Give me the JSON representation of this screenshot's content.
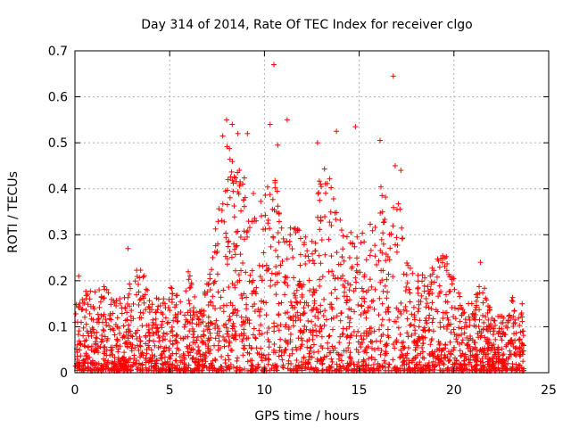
{
  "chart_data": {
    "type": "scatter",
    "title": "Day 314 of 2014, Rate Of TEC Index for receiver clgo",
    "xlabel": "GPS time / hours",
    "ylabel": "ROTI / TECUs",
    "xlim": [
      0,
      25
    ],
    "ylim": [
      0,
      0.7
    ],
    "xticks": [
      0,
      5,
      10,
      15,
      20,
      25
    ],
    "xtick_labels": [
      "0",
      "5",
      "10",
      "15",
      "20",
      "25"
    ],
    "yticks": [
      0,
      0.1,
      0.2,
      0.3,
      0.4,
      0.5,
      0.6,
      0.7
    ],
    "ytick_labels": [
      "0",
      "0.1",
      "0.2",
      "0.3",
      "0.4",
      "0.5",
      "0.6",
      "0.7"
    ],
    "grid": true,
    "marker": "+",
    "series": [
      {
        "name": "ROTI",
        "color": "#ff0000",
        "x_range": [
          0,
          23.7
        ],
        "envelope": [
          {
            "x": 0.0,
            "y": 0.14
          },
          {
            "x": 0.5,
            "y": 0.18
          },
          {
            "x": 1.0,
            "y": 0.17
          },
          {
            "x": 1.5,
            "y": 0.19
          },
          {
            "x": 2.0,
            "y": 0.17
          },
          {
            "x": 2.5,
            "y": 0.18
          },
          {
            "x": 3.0,
            "y": 0.2
          },
          {
            "x": 3.5,
            "y": 0.24
          },
          {
            "x": 4.0,
            "y": 0.15
          },
          {
            "x": 4.5,
            "y": 0.17
          },
          {
            "x": 5.0,
            "y": 0.19
          },
          {
            "x": 5.5,
            "y": 0.16
          },
          {
            "x": 6.0,
            "y": 0.24
          },
          {
            "x": 6.5,
            "y": 0.12
          },
          {
            "x": 7.0,
            "y": 0.2
          },
          {
            "x": 7.5,
            "y": 0.38
          },
          {
            "x": 8.0,
            "y": 0.5
          },
          {
            "x": 8.5,
            "y": 0.45
          },
          {
            "x": 9.0,
            "y": 0.42
          },
          {
            "x": 9.5,
            "y": 0.38
          },
          {
            "x": 10.0,
            "y": 0.4
          },
          {
            "x": 10.5,
            "y": 0.48
          },
          {
            "x": 11.0,
            "y": 0.32
          },
          {
            "x": 11.5,
            "y": 0.34
          },
          {
            "x": 12.0,
            "y": 0.3
          },
          {
            "x": 12.5,
            "y": 0.28
          },
          {
            "x": 13.0,
            "y": 0.45
          },
          {
            "x": 13.5,
            "y": 0.42
          },
          {
            "x": 14.0,
            "y": 0.36
          },
          {
            "x": 14.5,
            "y": 0.3
          },
          {
            "x": 15.0,
            "y": 0.34
          },
          {
            "x": 15.5,
            "y": 0.3
          },
          {
            "x": 16.0,
            "y": 0.42
          },
          {
            "x": 16.5,
            "y": 0.38
          },
          {
            "x": 17.0,
            "y": 0.4
          },
          {
            "x": 17.5,
            "y": 0.25
          },
          {
            "x": 18.0,
            "y": 0.22
          },
          {
            "x": 18.5,
            "y": 0.22
          },
          {
            "x": 19.0,
            "y": 0.25
          },
          {
            "x": 19.5,
            "y": 0.27
          },
          {
            "x": 20.0,
            "y": 0.2
          },
          {
            "x": 20.5,
            "y": 0.14
          },
          {
            "x": 21.0,
            "y": 0.16
          },
          {
            "x": 21.5,
            "y": 0.2
          },
          {
            "x": 22.0,
            "y": 0.12
          },
          {
            "x": 22.5,
            "y": 0.12
          },
          {
            "x": 23.0,
            "y": 0.17
          },
          {
            "x": 23.5,
            "y": 0.14
          },
          {
            "x": 23.7,
            "y": 0.14
          }
        ],
        "outliers": [
          {
            "x": 10.5,
            "y": 0.67
          },
          {
            "x": 16.8,
            "y": 0.645
          },
          {
            "x": 8.0,
            "y": 0.55
          },
          {
            "x": 8.3,
            "y": 0.54
          },
          {
            "x": 11.2,
            "y": 0.55
          },
          {
            "x": 10.3,
            "y": 0.54
          },
          {
            "x": 14.8,
            "y": 0.535
          },
          {
            "x": 13.8,
            "y": 0.525
          },
          {
            "x": 16.1,
            "y": 0.505
          },
          {
            "x": 12.8,
            "y": 0.5
          },
          {
            "x": 10.7,
            "y": 0.495
          },
          {
            "x": 8.6,
            "y": 0.52
          },
          {
            "x": 7.8,
            "y": 0.515
          },
          {
            "x": 9.1,
            "y": 0.52
          },
          {
            "x": 16.9,
            "y": 0.45
          },
          {
            "x": 17.2,
            "y": 0.44
          },
          {
            "x": 2.8,
            "y": 0.27
          },
          {
            "x": 21.4,
            "y": 0.24
          },
          {
            "x": 0.2,
            "y": 0.21
          },
          {
            "x": 23.6,
            "y": 0.15
          }
        ]
      }
    ]
  }
}
